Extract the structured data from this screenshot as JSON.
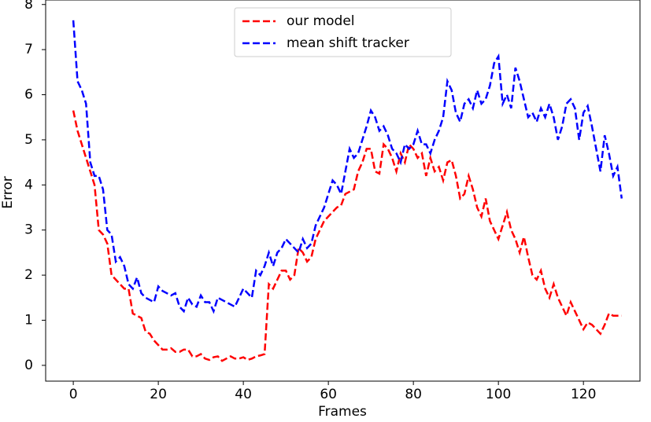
{
  "chart_data": {
    "type": "line",
    "xlabel": "Frames",
    "ylabel": "Error",
    "x": [
      0,
      1,
      2,
      3,
      4,
      5,
      6,
      7,
      8,
      9,
      10,
      11,
      12,
      13,
      14,
      15,
      16,
      17,
      18,
      19,
      20,
      21,
      22,
      23,
      24,
      25,
      26,
      27,
      28,
      29,
      30,
      31,
      32,
      33,
      34,
      35,
      36,
      37,
      38,
      39,
      40,
      41,
      42,
      43,
      44,
      45,
      46,
      47,
      48,
      49,
      50,
      51,
      52,
      53,
      54,
      55,
      56,
      57,
      58,
      59,
      60,
      61,
      62,
      63,
      64,
      65,
      66,
      67,
      68,
      69,
      70,
      71,
      72,
      73,
      74,
      75,
      76,
      77,
      78,
      79,
      80,
      81,
      82,
      83,
      84,
      85,
      86,
      87,
      88,
      89,
      90,
      91,
      92,
      93,
      94,
      95,
      96,
      97,
      98,
      99,
      100,
      101,
      102,
      103,
      104,
      105,
      106,
      107,
      108,
      109,
      110,
      111,
      112,
      113,
      114,
      115,
      116,
      117,
      118,
      119,
      120,
      121,
      122,
      123,
      124,
      125,
      126,
      127,
      128,
      129
    ],
    "series": [
      {
        "name": "our model",
        "color": "#ff0000",
        "values": [
          5.65,
          5.2,
          4.9,
          4.6,
          4.3,
          4.0,
          3.0,
          2.9,
          2.7,
          2.0,
          1.9,
          1.8,
          1.7,
          1.7,
          1.15,
          1.1,
          1.05,
          0.75,
          0.7,
          0.55,
          0.45,
          0.35,
          0.35,
          0.38,
          0.3,
          0.3,
          0.35,
          0.35,
          0.2,
          0.2,
          0.25,
          0.15,
          0.12,
          0.18,
          0.2,
          0.1,
          0.15,
          0.2,
          0.15,
          0.15,
          0.18,
          0.12,
          0.15,
          0.2,
          0.22,
          0.25,
          1.8,
          1.7,
          1.9,
          2.1,
          2.1,
          1.9,
          2.0,
          2.6,
          2.5,
          2.3,
          2.4,
          2.8,
          3.0,
          3.2,
          3.3,
          3.4,
          3.5,
          3.55,
          3.8,
          3.85,
          3.9,
          4.3,
          4.5,
          4.8,
          4.8,
          4.3,
          4.25,
          4.9,
          4.8,
          4.6,
          4.3,
          4.7,
          4.5,
          4.9,
          4.8,
          4.6,
          4.7,
          4.2,
          4.6,
          4.3,
          4.4,
          4.1,
          4.5,
          4.55,
          4.2,
          3.7,
          3.8,
          4.2,
          3.9,
          3.5,
          3.3,
          3.7,
          3.2,
          3.0,
          2.8,
          3.1,
          3.4,
          3.0,
          2.8,
          2.5,
          2.85,
          2.4,
          2.0,
          1.9,
          2.1,
          1.7,
          1.5,
          1.8,
          1.5,
          1.3,
          1.1,
          1.4,
          1.2,
          1.0,
          0.8,
          0.95,
          0.9,
          0.8,
          0.7,
          0.9,
          1.15,
          1.1,
          1.1,
          1.1
        ]
      },
      {
        "name": "mean shift tracker",
        "color": "#0000ff",
        "values": [
          7.65,
          6.3,
          6.1,
          5.8,
          4.5,
          4.2,
          4.2,
          3.9,
          3.0,
          2.9,
          2.3,
          2.4,
          2.2,
          1.8,
          1.7,
          1.95,
          1.6,
          1.5,
          1.45,
          1.4,
          1.75,
          1.65,
          1.6,
          1.55,
          1.6,
          1.3,
          1.2,
          1.5,
          1.35,
          1.3,
          1.55,
          1.4,
          1.4,
          1.2,
          1.5,
          1.45,
          1.4,
          1.35,
          1.3,
          1.5,
          1.7,
          1.6,
          1.5,
          2.1,
          2.0,
          2.2,
          2.5,
          2.2,
          2.5,
          2.6,
          2.8,
          2.7,
          2.6,
          2.5,
          2.8,
          2.6,
          2.7,
          3.1,
          3.3,
          3.5,
          3.8,
          4.1,
          4.0,
          3.8,
          4.3,
          4.8,
          4.6,
          4.7,
          5.0,
          5.3,
          5.65,
          5.5,
          5.2,
          5.3,
          5.1,
          4.8,
          4.7,
          4.5,
          4.9,
          4.8,
          4.9,
          5.2,
          4.9,
          4.9,
          4.7,
          5.0,
          5.2,
          5.5,
          6.3,
          6.1,
          5.6,
          5.4,
          5.8,
          5.9,
          5.7,
          6.1,
          5.8,
          5.9,
          6.2,
          6.7,
          6.85,
          5.8,
          6.0,
          5.7,
          6.6,
          6.3,
          5.9,
          5.5,
          5.6,
          5.4,
          5.7,
          5.5,
          5.8,
          5.5,
          5.0,
          5.3,
          5.8,
          5.9,
          5.7,
          5.0,
          5.6,
          5.75,
          5.3,
          4.8,
          4.3,
          5.1,
          4.7,
          4.2,
          4.4,
          3.7
        ]
      }
    ],
    "xlim": [
      -6.5,
      133.3
    ],
    "ylim": [
      -0.35,
      8.1
    ],
    "xticks": [
      0,
      20,
      40,
      60,
      80,
      100,
      120
    ],
    "yticks": [
      0,
      1,
      2,
      3,
      4,
      5,
      6,
      7,
      8
    ],
    "legend": "upper center"
  }
}
